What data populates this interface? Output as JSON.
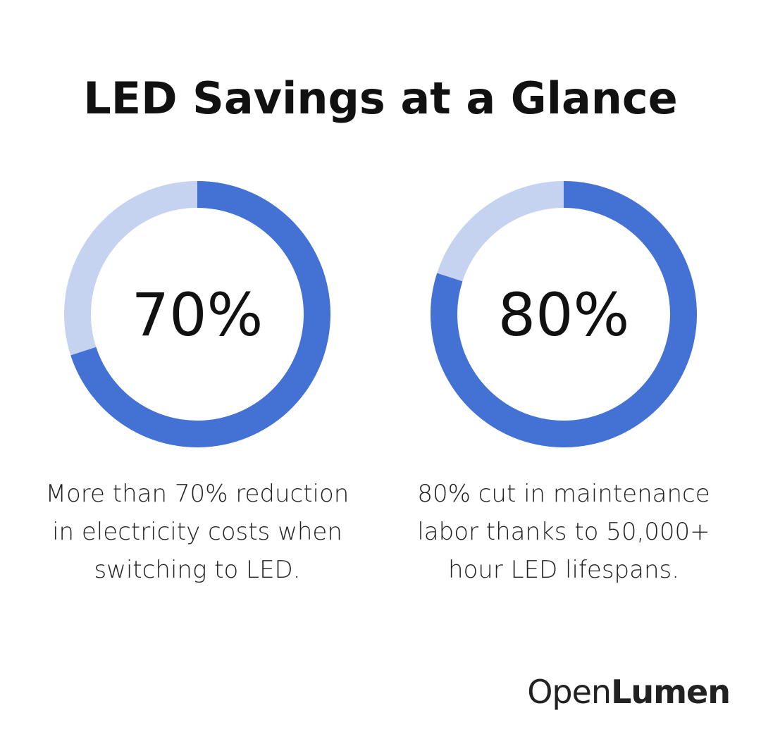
{
  "title": "LED Savings at a Glance",
  "chart_data": [
    {
      "type": "pie",
      "variant": "donut",
      "value": 70,
      "label": "70%",
      "max": 100,
      "colors": {
        "filled": "#4472d4",
        "remainder": "#c5d3f1"
      },
      "caption_lines": [
        "More than 70% reduction",
        "in electricity costs when",
        "switching to LED."
      ]
    },
    {
      "type": "pie",
      "variant": "donut",
      "value": 80,
      "label": "80%",
      "max": 100,
      "colors": {
        "filled": "#4472d4",
        "remainder": "#c5d3f1"
      },
      "caption_lines": [
        "80% cut in maintenance",
        "labor thanks to 50,000+",
        "hour LED lifespans."
      ]
    }
  ],
  "logo": {
    "light": "Open",
    "bold": "Lumen"
  }
}
